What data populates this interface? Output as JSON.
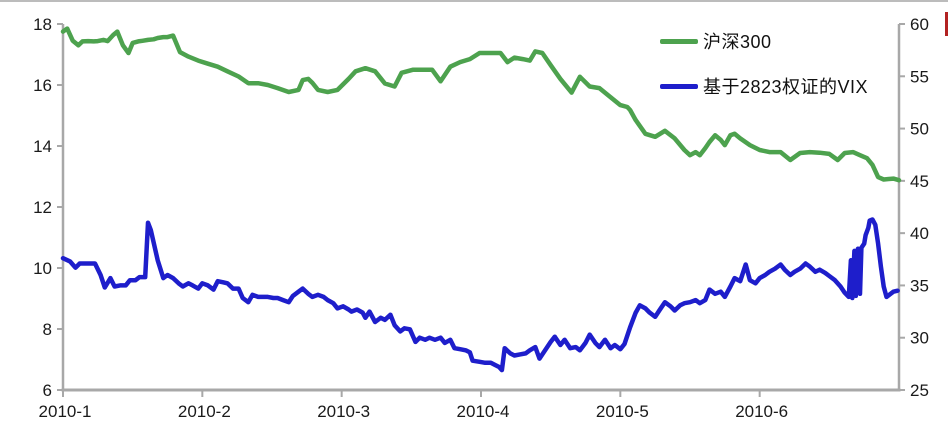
{
  "legend": {
    "series1_label": "沪深300",
    "series2_label": "基于2823权证的VIX"
  },
  "colors": {
    "csi300": "#4da24e",
    "vix": "#1e1ecb",
    "axis": "#a8a8a8",
    "text": "#1a1a1a",
    "top_border": "#bcbcbc",
    "edge_artifact": "#b22222"
  },
  "chart_data": {
    "type": "line",
    "title": "",
    "grid": false,
    "legend_position": "top-right",
    "x_axis": {
      "labels": [
        "2010-1",
        "2010-2",
        "2010-3",
        "2010-4",
        "2010-5",
        "2010-6"
      ],
      "tick_months": [
        1,
        2,
        3,
        4,
        5,
        6
      ],
      "range": [
        1,
        7
      ]
    },
    "left_axis": {
      "ticks": [
        6,
        8,
        10,
        12,
        14,
        16,
        18
      ],
      "range": [
        6,
        18
      ]
    },
    "right_axis": {
      "ticks": [
        25,
        30,
        35,
        40,
        45,
        50,
        55,
        60
      ],
      "range": [
        25,
        60
      ]
    },
    "series": [
      {
        "name": "沪深300",
        "data_name": "csi300-line",
        "axis": "left",
        "color_key": "csi300",
        "points": [
          [
            1.0,
            17.75
          ],
          [
            1.03,
            17.85
          ],
          [
            1.07,
            17.45
          ],
          [
            1.11,
            17.3
          ],
          [
            1.14,
            17.43
          ],
          [
            1.18,
            17.44
          ],
          [
            1.22,
            17.43
          ],
          [
            1.25,
            17.44
          ],
          [
            1.29,
            17.48
          ],
          [
            1.32,
            17.44
          ],
          [
            1.36,
            17.64
          ],
          [
            1.39,
            17.75
          ],
          [
            1.43,
            17.3
          ],
          [
            1.47,
            17.05
          ],
          [
            1.5,
            17.38
          ],
          [
            1.54,
            17.43
          ],
          [
            1.57,
            17.45
          ],
          [
            1.61,
            17.48
          ],
          [
            1.65,
            17.5
          ],
          [
            1.68,
            17.54
          ],
          [
            1.72,
            17.57
          ],
          [
            1.75,
            17.57
          ],
          [
            1.79,
            17.62
          ],
          [
            1.84,
            17.08
          ],
          [
            1.9,
            16.93
          ],
          [
            1.97,
            16.8
          ],
          [
            2.04,
            16.7
          ],
          [
            2.11,
            16.6
          ],
          [
            2.18,
            16.45
          ],
          [
            2.26,
            16.28
          ],
          [
            2.33,
            16.06
          ],
          [
            2.4,
            16.06
          ],
          [
            2.47,
            16.0
          ],
          [
            2.54,
            15.9
          ],
          [
            2.62,
            15.77
          ],
          [
            2.69,
            15.84
          ],
          [
            2.72,
            16.16
          ],
          [
            2.76,
            16.2
          ],
          [
            2.79,
            16.07
          ],
          [
            2.83,
            15.84
          ],
          [
            2.9,
            15.77
          ],
          [
            2.97,
            15.84
          ],
          [
            3.05,
            16.2
          ],
          [
            3.1,
            16.45
          ],
          [
            3.17,
            16.55
          ],
          [
            3.24,
            16.45
          ],
          [
            3.31,
            16.05
          ],
          [
            3.38,
            15.95
          ],
          [
            3.43,
            16.4
          ],
          [
            3.51,
            16.5
          ],
          [
            3.58,
            16.5
          ],
          [
            3.65,
            16.5
          ],
          [
            3.71,
            16.12
          ],
          [
            3.78,
            16.6
          ],
          [
            3.85,
            16.75
          ],
          [
            3.92,
            16.85
          ],
          [
            3.99,
            17.05
          ],
          [
            4.07,
            17.05
          ],
          [
            4.14,
            17.05
          ],
          [
            4.19,
            16.75
          ],
          [
            4.24,
            16.9
          ],
          [
            4.3,
            16.85
          ],
          [
            4.35,
            16.8
          ],
          [
            4.39,
            17.1
          ],
          [
            4.44,
            17.05
          ],
          [
            4.5,
            16.65
          ],
          [
            4.57,
            16.2
          ],
          [
            4.65,
            15.75
          ],
          [
            4.71,
            16.27
          ],
          [
            4.78,
            15.95
          ],
          [
            4.85,
            15.9
          ],
          [
            4.93,
            15.6
          ],
          [
            5.0,
            15.34
          ],
          [
            5.05,
            15.28
          ],
          [
            5.07,
            15.18
          ],
          [
            5.11,
            14.85
          ],
          [
            5.18,
            14.4
          ],
          [
            5.25,
            14.3
          ],
          [
            5.32,
            14.5
          ],
          [
            5.39,
            14.25
          ],
          [
            5.46,
            13.87
          ],
          [
            5.5,
            13.7
          ],
          [
            5.54,
            13.8
          ],
          [
            5.57,
            13.7
          ],
          [
            5.61,
            13.93
          ],
          [
            5.64,
            14.13
          ],
          [
            5.68,
            14.35
          ],
          [
            5.72,
            14.2
          ],
          [
            5.75,
            14.03
          ],
          [
            5.79,
            14.35
          ],
          [
            5.82,
            14.4
          ],
          [
            5.86,
            14.25
          ],
          [
            5.93,
            14.03
          ],
          [
            6.0,
            13.87
          ],
          [
            6.07,
            13.8
          ],
          [
            6.15,
            13.8
          ],
          [
            6.22,
            13.54
          ],
          [
            6.29,
            13.77
          ],
          [
            6.36,
            13.8
          ],
          [
            6.43,
            13.78
          ],
          [
            6.5,
            13.74
          ],
          [
            6.56,
            13.54
          ],
          [
            6.61,
            13.77
          ],
          [
            6.67,
            13.8
          ],
          [
            6.72,
            13.7
          ],
          [
            6.77,
            13.6
          ],
          [
            6.81,
            13.38
          ],
          [
            6.85,
            12.98
          ],
          [
            6.89,
            12.9
          ],
          [
            6.96,
            12.93
          ],
          [
            7.0,
            12.88
          ]
        ]
      },
      {
        "name": "基于2823权证的VIX",
        "data_name": "vix-line",
        "axis": "right",
        "color_key": "vix",
        "points": [
          [
            1.0,
            37.6
          ],
          [
            1.05,
            37.3
          ],
          [
            1.09,
            36.7
          ],
          [
            1.12,
            37.1
          ],
          [
            1.19,
            37.1
          ],
          [
            1.23,
            37.1
          ],
          [
            1.27,
            36.0
          ],
          [
            1.3,
            34.8
          ],
          [
            1.34,
            35.7
          ],
          [
            1.37,
            34.9
          ],
          [
            1.41,
            35.0
          ],
          [
            1.45,
            35.0
          ],
          [
            1.48,
            35.5
          ],
          [
            1.52,
            35.5
          ],
          [
            1.55,
            35.8
          ],
          [
            1.59,
            35.8
          ],
          [
            1.61,
            41.0
          ],
          [
            1.63,
            40.3
          ],
          [
            1.68,
            37.4
          ],
          [
            1.72,
            35.7
          ],
          [
            1.75,
            36.0
          ],
          [
            1.79,
            35.7
          ],
          [
            1.83,
            35.2
          ],
          [
            1.86,
            34.9
          ],
          [
            1.9,
            35.2
          ],
          [
            1.93,
            35.0
          ],
          [
            1.97,
            34.7
          ],
          [
            2.0,
            35.2
          ],
          [
            2.04,
            35.0
          ],
          [
            2.08,
            34.6
          ],
          [
            2.11,
            35.4
          ],
          [
            2.15,
            35.3
          ],
          [
            2.18,
            35.2
          ],
          [
            2.22,
            34.7
          ],
          [
            2.26,
            34.7
          ],
          [
            2.29,
            33.8
          ],
          [
            2.33,
            33.4
          ],
          [
            2.36,
            34.1
          ],
          [
            2.4,
            33.9
          ],
          [
            2.44,
            33.9
          ],
          [
            2.47,
            33.9
          ],
          [
            2.51,
            33.8
          ],
          [
            2.54,
            33.8
          ],
          [
            2.58,
            33.6
          ],
          [
            2.62,
            33.4
          ],
          [
            2.65,
            34.0
          ],
          [
            2.69,
            34.4
          ],
          [
            2.72,
            34.7
          ],
          [
            2.76,
            34.2
          ],
          [
            2.79,
            33.9
          ],
          [
            2.83,
            34.1
          ],
          [
            2.87,
            33.9
          ],
          [
            2.9,
            33.6
          ],
          [
            2.94,
            33.3
          ],
          [
            2.97,
            32.8
          ],
          [
            3.01,
            33.0
          ],
          [
            3.05,
            32.7
          ],
          [
            3.07,
            32.5
          ],
          [
            3.11,
            32.7
          ],
          [
            3.15,
            32.4
          ],
          [
            3.17,
            31.9
          ],
          [
            3.2,
            32.5
          ],
          [
            3.24,
            31.5
          ],
          [
            3.28,
            31.9
          ],
          [
            3.31,
            31.7
          ],
          [
            3.35,
            32.2
          ],
          [
            3.38,
            31.2
          ],
          [
            3.42,
            30.6
          ],
          [
            3.45,
            30.9
          ],
          [
            3.49,
            30.8
          ],
          [
            3.53,
            29.6
          ],
          [
            3.56,
            30.0
          ],
          [
            3.6,
            29.8
          ],
          [
            3.63,
            30.0
          ],
          [
            3.67,
            29.8
          ],
          [
            3.71,
            30.0
          ],
          [
            3.74,
            29.5
          ],
          [
            3.78,
            29.8
          ],
          [
            3.81,
            29.0
          ],
          [
            3.85,
            28.9
          ],
          [
            3.89,
            28.8
          ],
          [
            3.92,
            28.6
          ],
          [
            3.94,
            27.8
          ],
          [
            3.99,
            27.7
          ],
          [
            4.03,
            27.6
          ],
          [
            4.07,
            27.6
          ],
          [
            4.1,
            27.4
          ],
          [
            4.13,
            27.2
          ],
          [
            4.15,
            26.9
          ],
          [
            4.17,
            29.0
          ],
          [
            4.21,
            28.5
          ],
          [
            4.24,
            28.3
          ],
          [
            4.28,
            28.4
          ],
          [
            4.32,
            28.5
          ],
          [
            4.35,
            28.8
          ],
          [
            4.39,
            29.1
          ],
          [
            4.42,
            28.0
          ],
          [
            4.46,
            28.8
          ],
          [
            4.5,
            29.6
          ],
          [
            4.53,
            30.1
          ],
          [
            4.57,
            29.3
          ],
          [
            4.6,
            29.8
          ],
          [
            4.64,
            29.0
          ],
          [
            4.68,
            29.1
          ],
          [
            4.71,
            28.8
          ],
          [
            4.75,
            29.5
          ],
          [
            4.78,
            30.3
          ],
          [
            4.82,
            29.5
          ],
          [
            4.85,
            29.1
          ],
          [
            4.89,
            29.8
          ],
          [
            4.93,
            29.0
          ],
          [
            4.96,
            29.3
          ],
          [
            5.0,
            28.9
          ],
          [
            5.03,
            29.4
          ],
          [
            5.07,
            31.0
          ],
          [
            5.11,
            32.4
          ],
          [
            5.14,
            33.1
          ],
          [
            5.18,
            32.8
          ],
          [
            5.21,
            32.4
          ],
          [
            5.25,
            32.0
          ],
          [
            5.28,
            32.6
          ],
          [
            5.32,
            33.4
          ],
          [
            5.36,
            33.0
          ],
          [
            5.39,
            32.6
          ],
          [
            5.43,
            33.1
          ],
          [
            5.46,
            33.3
          ],
          [
            5.5,
            33.4
          ],
          [
            5.54,
            33.6
          ],
          [
            5.57,
            33.3
          ],
          [
            5.61,
            33.6
          ],
          [
            5.64,
            34.6
          ],
          [
            5.68,
            34.2
          ],
          [
            5.72,
            34.4
          ],
          [
            5.75,
            33.9
          ],
          [
            5.79,
            34.9
          ],
          [
            5.82,
            35.7
          ],
          [
            5.86,
            35.4
          ],
          [
            5.9,
            37.0
          ],
          [
            5.93,
            35.5
          ],
          [
            5.97,
            35.2
          ],
          [
            6.0,
            35.7
          ],
          [
            6.04,
            36.0
          ],
          [
            6.07,
            36.3
          ],
          [
            6.11,
            36.6
          ],
          [
            6.15,
            37.0
          ],
          [
            6.18,
            36.5
          ],
          [
            6.22,
            36.0
          ],
          [
            6.25,
            36.3
          ],
          [
            6.29,
            36.6
          ],
          [
            6.33,
            37.1
          ],
          [
            6.36,
            36.8
          ],
          [
            6.4,
            36.3
          ],
          [
            6.43,
            36.5
          ],
          [
            6.47,
            36.2
          ],
          [
            6.5,
            35.9
          ],
          [
            6.54,
            35.5
          ],
          [
            6.58,
            34.9
          ],
          [
            6.61,
            34.3
          ],
          [
            6.64,
            33.9
          ],
          [
            6.655,
            37.4
          ],
          [
            6.665,
            33.8
          ],
          [
            6.68,
            38.3
          ],
          [
            6.69,
            34.0
          ],
          [
            6.705,
            38.5
          ],
          [
            6.72,
            34.2
          ],
          [
            6.73,
            38.6
          ],
          [
            6.75,
            39.0
          ],
          [
            6.76,
            39.8
          ],
          [
            6.78,
            40.5
          ],
          [
            6.79,
            41.2
          ],
          [
            6.81,
            41.3
          ],
          [
            6.83,
            40.8
          ],
          [
            6.85,
            39.0
          ],
          [
            6.87,
            36.8
          ],
          [
            6.89,
            34.9
          ],
          [
            6.91,
            33.9
          ],
          [
            6.94,
            34.2
          ],
          [
            6.96,
            34.4
          ],
          [
            6.99,
            34.5
          ]
        ]
      }
    ]
  }
}
